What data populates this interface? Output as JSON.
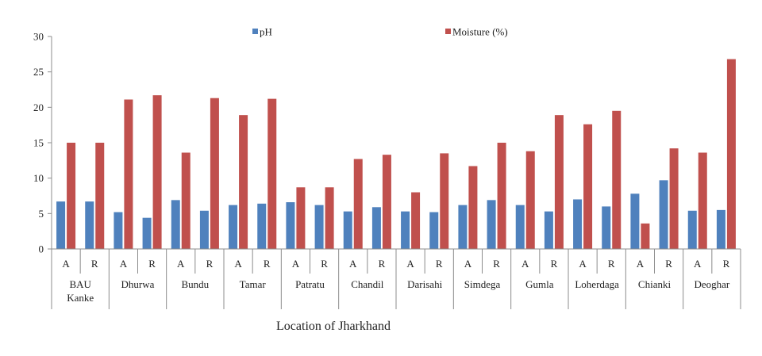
{
  "chart_data": {
    "type": "bar",
    "legend_position": "top",
    "grid": false,
    "ylim": [
      0,
      30
    ],
    "yticks": [
      0,
      5,
      10,
      15,
      20,
      25,
      30
    ],
    "xlabel": "Location of Jharkhand",
    "ylabel": "",
    "title": "",
    "groups": [
      {
        "name": [
          "BAU",
          "Kanke"
        ],
        "subcategories": [
          "A",
          "R"
        ]
      },
      {
        "name": [
          "Dhurwa"
        ],
        "subcategories": [
          "A",
          "R"
        ]
      },
      {
        "name": [
          "Bundu"
        ],
        "subcategories": [
          "A",
          "R"
        ]
      },
      {
        "name": [
          "Tamar"
        ],
        "subcategories": [
          "A",
          "R"
        ]
      },
      {
        "name": [
          "Patratu"
        ],
        "subcategories": [
          "A",
          "R"
        ]
      },
      {
        "name": [
          "Chandil"
        ],
        "subcategories": [
          "A",
          "R"
        ]
      },
      {
        "name": [
          "Darisahi"
        ],
        "subcategories": [
          "A",
          "R"
        ]
      },
      {
        "name": [
          "Simdega"
        ],
        "subcategories": [
          "A",
          "R"
        ]
      },
      {
        "name": [
          "Gumla"
        ],
        "subcategories": [
          "A",
          "R"
        ]
      },
      {
        "name": [
          "Loherdaga"
        ],
        "subcategories": [
          "A",
          "R"
        ]
      },
      {
        "name": [
          "Chianki"
        ],
        "subcategories": [
          "A",
          "R"
        ]
      },
      {
        "name": [
          "Deoghar"
        ],
        "subcategories": [
          "A",
          "R"
        ]
      }
    ],
    "series": [
      {
        "name": "pH",
        "color": "#4f81bd",
        "values": [
          6.7,
          6.7,
          5.2,
          4.4,
          6.9,
          5.4,
          6.2,
          6.4,
          6.6,
          6.2,
          5.3,
          5.9,
          5.3,
          5.2,
          6.2,
          6.9,
          6.2,
          5.3,
          7.0,
          6.0,
          7.8,
          9.7,
          5.4,
          5.5
        ]
      },
      {
        "name": "Moisture (%)",
        "color": "#c0504d",
        "values": [
          15.0,
          15.0,
          21.1,
          21.7,
          13.6,
          21.3,
          18.9,
          21.2,
          8.7,
          8.7,
          12.7,
          13.3,
          8.0,
          13.5,
          11.7,
          15.0,
          13.8,
          18.9,
          17.6,
          19.5,
          3.6,
          14.2,
          13.6,
          26.8
        ]
      }
    ]
  },
  "colors": {
    "axis": "#8c8c8c"
  }
}
